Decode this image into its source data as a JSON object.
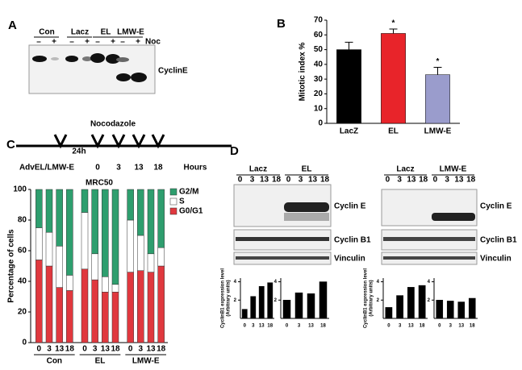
{
  "panel_labels": [
    "A",
    "B",
    "C",
    "D"
  ],
  "blot_a": {
    "groups": [
      "Con",
      "Lacz",
      "EL",
      "LMW-E"
    ],
    "treatments": [
      "–",
      "+"
    ],
    "treatment_label": "Noc",
    "band_label": "CyclinE"
  },
  "timeline": {
    "title": "Nocodazole",
    "interval": "24h",
    "agent": "AdvEL/LMW-E",
    "times": [
      "0",
      "3",
      "13",
      "18"
    ],
    "unit": "Hours"
  },
  "blot_d": [
    {
      "groups": [
        "Lacz",
        "EL"
      ],
      "lanes": [
        "0",
        "3",
        "13",
        "18"
      ],
      "bands": [
        "Cyclin E",
        "Cyclin B1",
        "Vinculin"
      ]
    },
    {
      "groups": [
        "Lacz",
        "LMW-E"
      ],
      "lanes": [
        "0",
        "3",
        "13",
        "18"
      ],
      "bands": [
        "Cyclin E",
        "Cyclin B1",
        "Vinculin"
      ]
    }
  ],
  "chart_data": [
    {
      "type": "bar",
      "y_label": [
        "Mitotic index %"
      ],
      "categories": [
        "LacZ",
        "EL",
        "LMW-E"
      ],
      "values": [
        50,
        61,
        33
      ],
      "errors": [
        5,
        3,
        5
      ],
      "significance": [
        null,
        "*",
        "*"
      ],
      "colors": [
        "#000000",
        "#e8242a",
        "#9a9ccc"
      ],
      "ylim": [
        0,
        70
      ],
      "yticks": [
        0,
        10,
        20,
        30,
        40,
        50,
        60,
        70
      ]
    },
    {
      "type": "stacked_bar",
      "title": "MRC50",
      "y_label": [
        "Percentage of cells"
      ],
      "categories": [
        "0",
        "3",
        "13",
        "18",
        "0",
        "3",
        "13",
        "18",
        "0",
        "3",
        "13",
        "18"
      ],
      "groups": [
        "Con",
        "EL",
        "LMW-E"
      ],
      "series": [
        {
          "name": "G0/G1",
          "color": "#e0383e",
          "values": [
            54,
            50,
            36,
            34,
            48,
            41,
            33,
            33,
            46,
            47,
            46,
            50
          ]
        },
        {
          "name": "S",
          "color": "#ffffff",
          "values": [
            21,
            22,
            27,
            10,
            37,
            17,
            10,
            5,
            34,
            23,
            12,
            12
          ]
        },
        {
          "name": "G2/M",
          "color": "#2e9e6e",
          "values": [
            25,
            28,
            37,
            56,
            15,
            42,
            57,
            62,
            20,
            30,
            42,
            38
          ]
        }
      ],
      "ylim": [
        0,
        100
      ],
      "yticks": [
        0,
        20,
        40,
        60,
        80,
        100
      ]
    },
    {
      "type": "bar",
      "y_label": [
        "CyclinB1 expression level",
        "(Arbitrary units)"
      ],
      "categories": [
        "0",
        "3",
        "13",
        "18"
      ],
      "values": [
        1.0,
        2.4,
        3.5,
        3.9
      ],
      "color": "#000000",
      "ylim": [
        0,
        4.4
      ],
      "yticks": [
        2,
        4
      ]
    },
    {
      "type": "bar",
      "categories": [
        "0",
        "3",
        "13",
        "18"
      ],
      "values": [
        2.0,
        2.8,
        2.7,
        4.0
      ],
      "color": "#000000",
      "ylim": [
        0,
        4.4
      ],
      "yticks": [
        2,
        4
      ]
    },
    {
      "type": "bar",
      "y_label": [
        "CyclinB1 expression level",
        "(Arbitrary units)"
      ],
      "categories": [
        "0",
        "3",
        "13",
        "18"
      ],
      "values": [
        1.2,
        2.5,
        3.4,
        3.6
      ],
      "color": "#000000",
      "ylim": [
        0,
        4.4
      ],
      "yticks": [
        2,
        4
      ]
    },
    {
      "type": "bar",
      "categories": [
        "0",
        "3",
        "13",
        "18"
      ],
      "values": [
        2.0,
        1.9,
        1.8,
        2.2
      ],
      "color": "#000000",
      "ylim": [
        0,
        4.4
      ],
      "yticks": [
        2,
        4
      ]
    }
  ]
}
